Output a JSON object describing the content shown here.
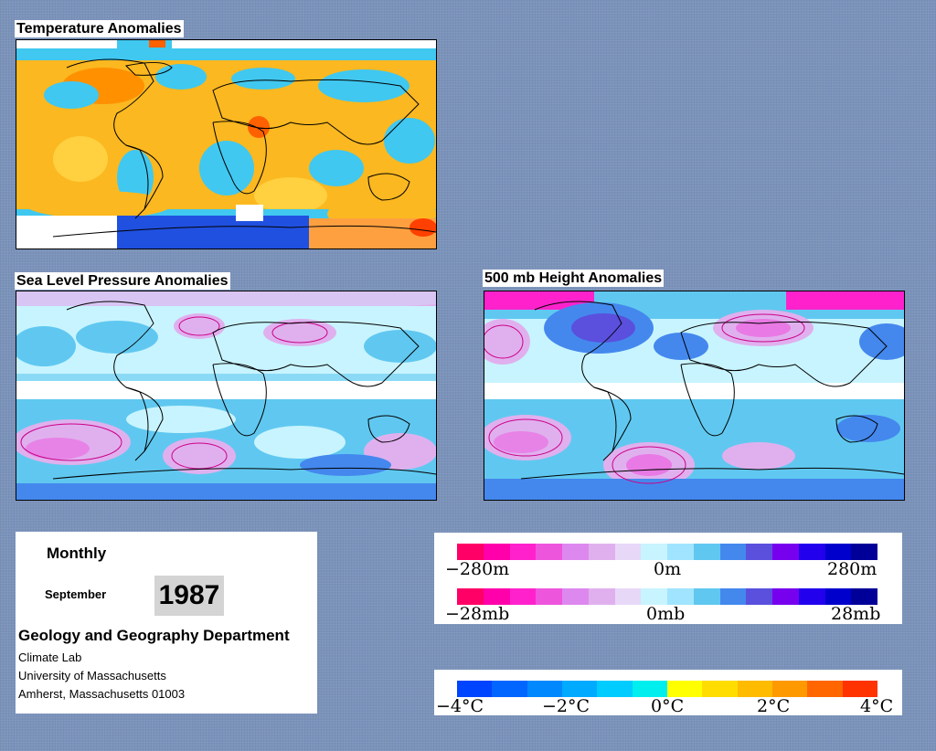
{
  "maps": {
    "temperature": {
      "title": "Temperature Anomalies"
    },
    "pressure": {
      "title": "Sea Level Pressure Anomalies"
    },
    "height": {
      "title": "500 mb Height Anomalies"
    }
  },
  "info": {
    "period": "Monthly",
    "month": "September",
    "year": "1987",
    "department": "Geology and Geography Department",
    "address": [
      "Climate Lab",
      "University of Massachusetts",
      "Amherst, Massachusetts 01003"
    ]
  },
  "legend_anomaly": {
    "colors": [
      "#ff0066",
      "#ff00aa",
      "#ff22cc",
      "#ee55dd",
      "#dd88ee",
      "#e0b0ee",
      "#e8d8f8",
      "#c8f4ff",
      "#a0e4ff",
      "#60c8f0",
      "#4488ee",
      "#5a50dd",
      "#7700ee",
      "#2200ee",
      "#0000cc",
      "#000099"
    ],
    "height_labels": [
      "−280m",
      "0m",
      "280m"
    ],
    "pressure_labels": [
      "−28mb",
      "0mb",
      "28mb"
    ]
  },
  "legend_temperature": {
    "colors": [
      "#0044ff",
      "#0066ff",
      "#0088ff",
      "#00aaff",
      "#00ccff",
      "#00eeee",
      "#ffff00",
      "#ffdd00",
      "#ffbb00",
      "#ff9900",
      "#ff6600",
      "#ff3300"
    ],
    "labels": [
      "−4°C",
      "−2°C",
      "0°C",
      "2°C",
      "4°C"
    ]
  }
}
